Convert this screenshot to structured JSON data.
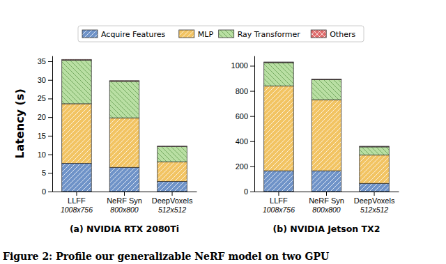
{
  "chart_data": [
    {
      "type": "bar",
      "stacked": true,
      "legend": "top",
      "title": "(a) NVIDIA RTX 2080Ti",
      "y_label": "Latency (s)",
      "categories": [
        "LLFF\n1008x756",
        "NeRF Syn\n800x800",
        "DeepVoxels\n512x512"
      ],
      "series": [
        {
          "name": "Acquire Features",
          "color": "#6f93c8",
          "values": [
            7.6,
            6.5,
            2.7
          ]
        },
        {
          "name": "MLP",
          "color": "#f2c463",
          "values": [
            16.0,
            13.3,
            5.3
          ]
        },
        {
          "name": "Ray Transformer",
          "color": "#b9dfa3",
          "values": [
            11.7,
            9.8,
            4.1
          ]
        },
        {
          "name": "Others",
          "color": "#e06a6a",
          "values": [
            0.2,
            0.2,
            0.1
          ]
        }
      ],
      "ylim": [
        0,
        36.5
      ],
      "yticks": [
        0,
        5,
        10,
        15,
        20,
        25,
        30,
        35
      ]
    },
    {
      "type": "bar",
      "stacked": true,
      "title": "(b) NVIDIA Jetson TX2",
      "categories": [
        "LLFF\n1008x756",
        "NeRF Syn\n800x800",
        "DeepVoxels\n512x512"
      ],
      "series": [
        {
          "name": "Acquire Features",
          "color": "#6f93c8",
          "values": [
            165,
            165,
            65
          ]
        },
        {
          "name": "MLP",
          "color": "#f2c463",
          "values": [
            675,
            565,
            225
          ]
        },
        {
          "name": "Ray Transformer",
          "color": "#b9dfa3",
          "values": [
            185,
            160,
            65
          ]
        },
        {
          "name": "Others",
          "color": "#e06a6a",
          "values": [
            5,
            5,
            5
          ]
        }
      ],
      "ylim": [
        0,
        1080
      ],
      "yticks": [
        0,
        200,
        400,
        600,
        800,
        1000
      ]
    }
  ],
  "caption": "Figure 2: Profile our generalizable NeRF model on two GPU"
}
